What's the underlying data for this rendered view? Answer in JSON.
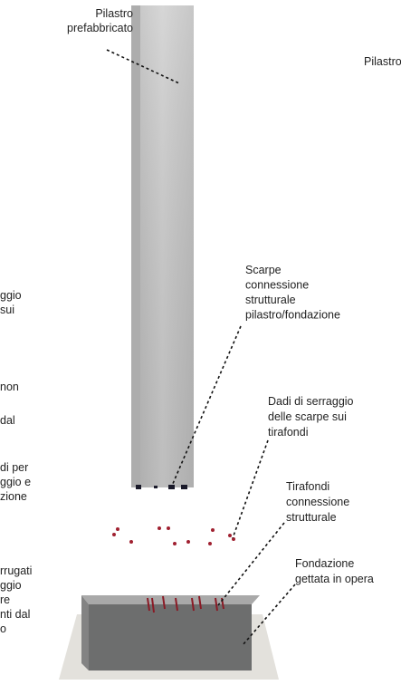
{
  "labels": [
    {
      "lines": [
        "Pilastro",
        "prefabbricato"
      ]
    },
    {
      "lines": [
        "Pilastro"
      ]
    },
    {
      "lines": [
        "ggio",
        "sui"
      ]
    },
    {
      "lines": [
        "non"
      ]
    },
    {
      "lines": [
        "dal"
      ]
    },
    {
      "lines": [
        "di per",
        "ggio e",
        "zione"
      ]
    },
    {
      "lines": [
        "rrugati",
        "ggio",
        "re",
        "nti dal",
        "o"
      ]
    },
    {
      "lines": [
        "Scarpe",
        "connessione",
        "strutturale",
        "pilastro/fondazione"
      ]
    },
    {
      "lines": [
        "Dadi di serraggio",
        "delle scarpe sui",
        "tirafondi"
      ]
    },
    {
      "lines": [
        "Tirafondi",
        "connessione",
        "strutturale"
      ]
    },
    {
      "lines": [
        "Fondazione",
        "gettata in opera"
      ]
    }
  ]
}
